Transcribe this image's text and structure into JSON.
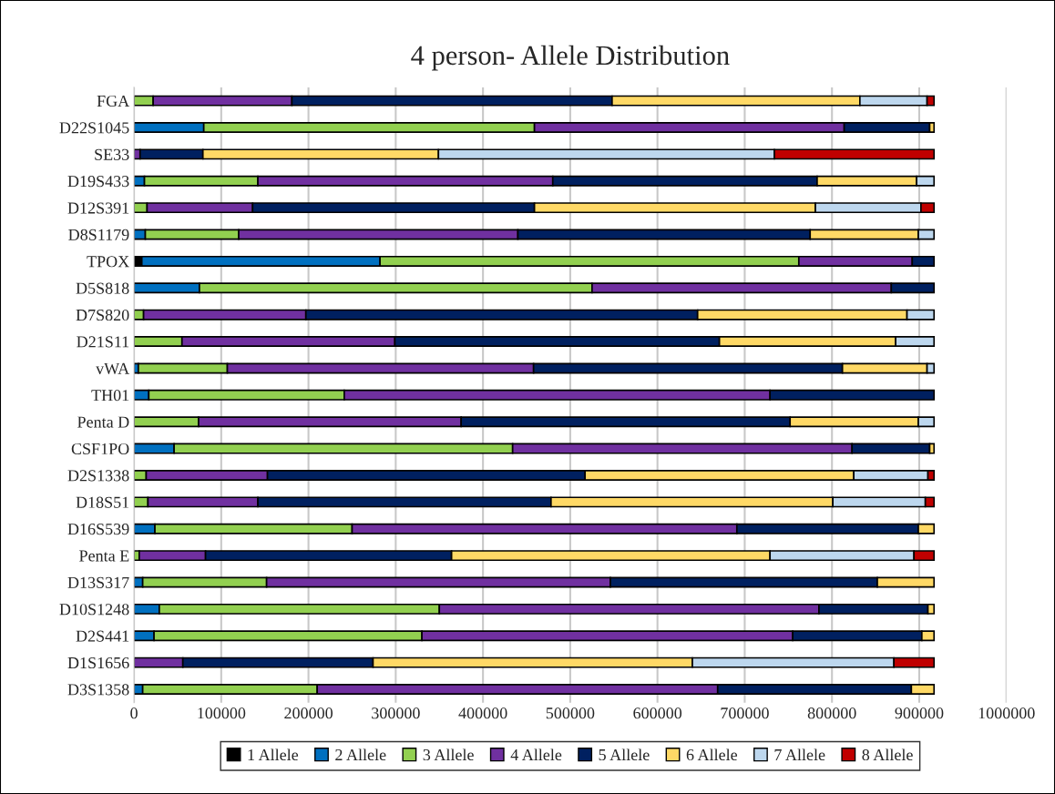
{
  "chart_data": {
    "type": "bar",
    "orientation": "horizontal",
    "stacked": true,
    "title": "4 person- Allele Distribution",
    "categories": [
      "FGA",
      "D22S1045",
      "SE33",
      "D19S433",
      "D12S391",
      "D8S1179",
      "TPOX",
      "D5S818",
      "D7S820",
      "D21S11",
      "vWA",
      "TH01",
      "Penta D",
      "CSF1PO",
      "D2S1338",
      "D18S51",
      "D16S539",
      "Penta E",
      "D13S317",
      "D10S1248",
      "D2S441",
      "D1S1656",
      "D3S1358"
    ],
    "series": [
      {
        "name": "1 Allele",
        "color": "#000000",
        "values": [
          null,
          null,
          null,
          null,
          null,
          null,
          9000,
          null,
          null,
          null,
          null,
          null,
          null,
          null,
          null,
          null,
          null,
          null,
          null,
          null,
          null,
          null,
          null
        ]
      },
      {
        "name": "2 Allele",
        "color": "#0070c0",
        "values": [
          null,
          80000,
          null,
          12000,
          null,
          13000,
          273000,
          75000,
          null,
          null,
          5000,
          17000,
          null,
          46000,
          null,
          null,
          24000,
          null,
          10000,
          29000,
          23000,
          null,
          10000
        ]
      },
      {
        "name": "3 Allele",
        "color": "#92d050",
        "values": [
          22000,
          379000,
          null,
          130000,
          15000,
          107000,
          480000,
          450000,
          11000,
          55000,
          102000,
          224000,
          74000,
          388000,
          14000,
          16000,
          226000,
          6000,
          142000,
          321000,
          307000,
          null,
          200000
        ]
      },
      {
        "name": "4 Allele",
        "color": "#7030a0",
        "values": [
          159000,
          355000,
          7000,
          338000,
          121000,
          320000,
          130000,
          343000,
          186000,
          244000,
          351000,
          488000,
          301000,
          389000,
          139000,
          126000,
          441000,
          76000,
          394000,
          435000,
          425000,
          56000,
          459000
        ]
      },
      {
        "name": "5 Allele",
        "color": "#002060",
        "values": [
          367000,
          98000,
          72000,
          303000,
          323000,
          335000,
          25000,
          49000,
          449000,
          372000,
          354000,
          188000,
          377000,
          89000,
          364000,
          336000,
          208000,
          282000,
          306000,
          125000,
          148000,
          218000,
          222000
        ]
      },
      {
        "name": "6 Allele",
        "color": "#ffd966",
        "values": [
          284000,
          5000,
          270000,
          114000,
          322000,
          124000,
          null,
          null,
          240000,
          202000,
          97000,
          null,
          147000,
          5000,
          308000,
          323000,
          18000,
          365000,
          65000,
          7000,
          14000,
          366000,
          26000
        ]
      },
      {
        "name": "7 Allele",
        "color": "#bdd7ee",
        "values": [
          77000,
          null,
          385000,
          20000,
          121000,
          18000,
          null,
          null,
          31000,
          44000,
          8000,
          null,
          18000,
          null,
          85000,
          106000,
          null,
          165000,
          null,
          null,
          null,
          231000,
          null
        ]
      },
      {
        "name": "8 Allele",
        "color": "#c00000",
        "values": [
          8000,
          null,
          183000,
          null,
          15000,
          null,
          null,
          null,
          null,
          null,
          null,
          null,
          null,
          null,
          7000,
          10000,
          null,
          23000,
          null,
          null,
          null,
          46000,
          null
        ]
      }
    ],
    "xlim": [
      0,
      1000000
    ],
    "xticks": [
      0,
      100000,
      200000,
      300000,
      400000,
      500000,
      600000,
      700000,
      800000,
      900000,
      1000000
    ],
    "grid": "x",
    "legend": "bottom"
  }
}
